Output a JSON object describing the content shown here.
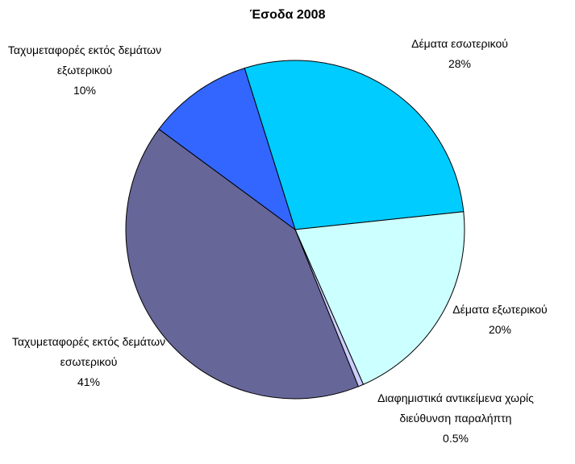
{
  "chart_data": {
    "type": "pie",
    "title": "Έσοδα 2008",
    "categories": [
      "Δέματα εσωτερικού",
      "Δέματα εξωτερικού",
      "Διαφημιστικά αντικείμενα χωρίς διεύθυνση παραλήπτη",
      "Ταχυμεταφορές εκτός δεμάτων εσωτερικού",
      "Ταχυμεταφορές εκτός δεμάτων εξωτερικού"
    ],
    "values": [
      28,
      20,
      0.5,
      41,
      10
    ],
    "value_labels": [
      "28%",
      "20%",
      "0.5%",
      "41%",
      "10%"
    ],
    "colors": [
      "#00ccff",
      "#ccffff",
      "#ccccff",
      "#666699",
      "#3366ff"
    ]
  }
}
